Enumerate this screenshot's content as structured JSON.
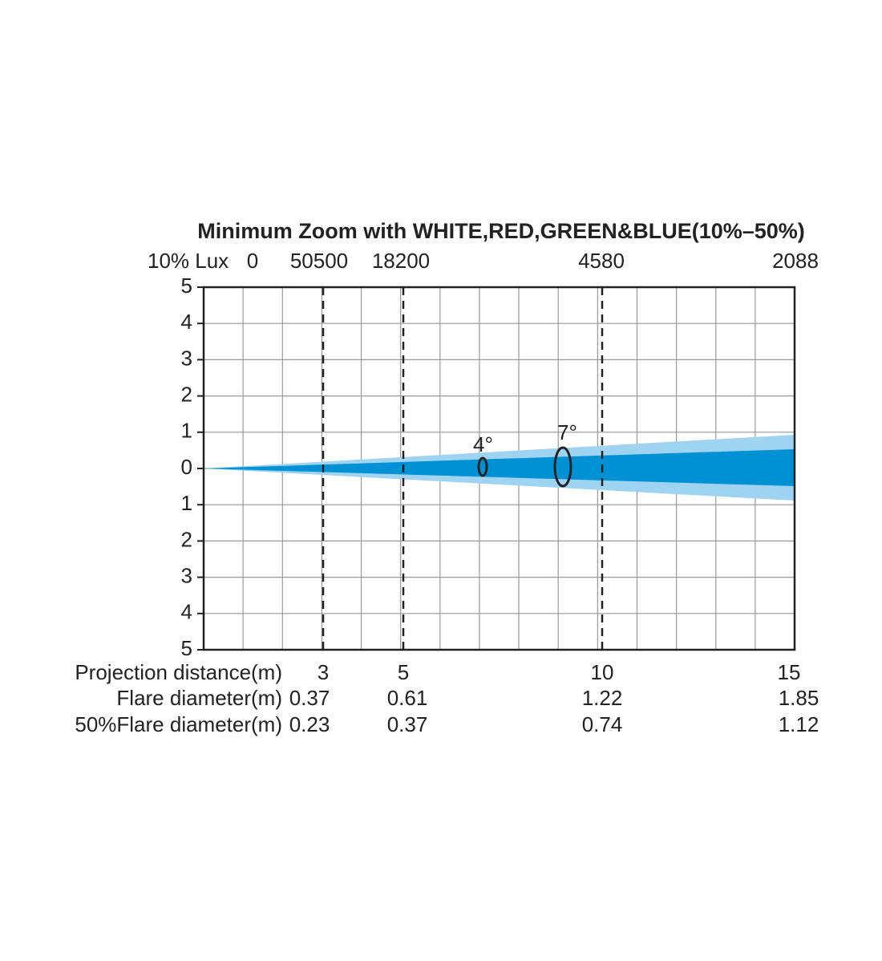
{
  "title": "Minimum Zoom with WHITE,RED,GREEN&BLUE(10%–50%)",
  "lux_row": {
    "label": "10% Lux",
    "values": [
      0,
      50500,
      18200,
      4580,
      2088
    ]
  },
  "y_labels": [
    5,
    4,
    3,
    2,
    1,
    0,
    1,
    2,
    3,
    4,
    5
  ],
  "angles": [
    "4°",
    "7°"
  ],
  "rows": [
    {
      "label": "Projection distance(m)",
      "values": [
        3,
        5,
        10,
        15
      ]
    },
    {
      "label": "Flare diameter(m)",
      "values": [
        0.37,
        0.61,
        1.22,
        1.85
      ]
    },
    {
      "label": "50%Flare diameter(m)",
      "values": [
        0.23,
        0.37,
        0.74,
        1.12
      ]
    }
  ]
}
